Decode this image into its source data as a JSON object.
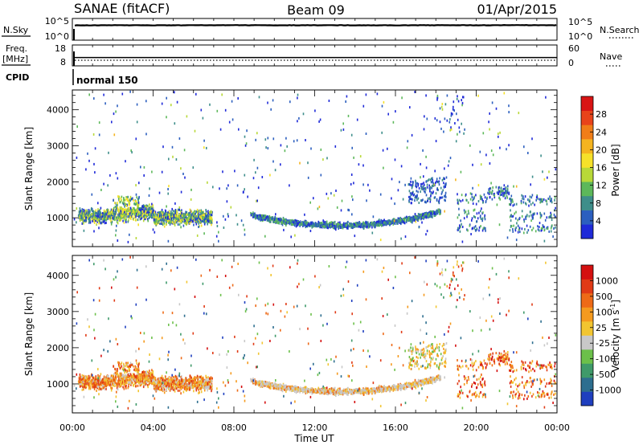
{
  "header": {
    "station": "SANAE (fitACF)",
    "beam": "Beam 09",
    "date": "01/Apr/2015"
  },
  "chart_data": [
    {
      "type": "line",
      "panel": "sky-noise",
      "left_label": "N.Sky",
      "right_label": "N.Search",
      "left_ticks": [
        "10^5",
        "10^0"
      ],
      "right_ticks": [
        "10^5",
        "10^0"
      ],
      "x": [
        0,
        2,
        4,
        6,
        8,
        10,
        12,
        14,
        16,
        18,
        20,
        22,
        24
      ],
      "series": [
        {
          "values": [
            3.4,
            3.45,
            3.42,
            3.44,
            3.46,
            3.43,
            3.45,
            3.44,
            3.42,
            3.45,
            3.44,
            3.46,
            3.45
          ]
        }
      ]
    },
    {
      "type": "line",
      "panel": "frequency",
      "left_label_1": "Freq.",
      "left_label_2": "[MHz]",
      "right_label": "Nave",
      "cpid_label": "CPID",
      "left_ticks": [
        "18",
        "8"
      ],
      "right_ticks": [
        "60",
        "0"
      ],
      "ylim": [
        8,
        18
      ],
      "x": [
        0,
        24
      ],
      "series": [
        {
          "values": [
            12,
            12
          ]
        },
        {
          "values": [
            10.7,
            10.7
          ]
        }
      ]
    },
    {
      "type": "scatter",
      "panel": "cpid",
      "annotation": "normal 150"
    },
    {
      "type": "heatmap",
      "panel": "power",
      "ylabel": "Slant Range [km]",
      "yticks": [
        "4000",
        "3000",
        "2000",
        "1000"
      ],
      "ylim": [
        200,
        4550
      ],
      "xlim": [
        0,
        24
      ],
      "colorbar": {
        "label": "Power [dB]",
        "ticks": [
          "28",
          "24",
          "20",
          "16",
          "12",
          "8",
          "4"
        ],
        "colors": [
          "#1f2ad8",
          "#2c5fbf",
          "#3e8e8a",
          "#5db85a",
          "#b8d838",
          "#f6e12a",
          "#f5b41f",
          "#f07d18",
          "#e8431a",
          "#d81414"
        ]
      }
    },
    {
      "type": "heatmap",
      "panel": "velocity",
      "ylabel": "Slant Range [km]",
      "yticks": [
        "4000",
        "3000",
        "2000",
        "1000"
      ],
      "ylim": [
        200,
        4550
      ],
      "xlim": [
        0,
        24
      ],
      "xlabel": "Time UT",
      "xticks": [
        "00:00",
        "04:00",
        "08:00",
        "12:00",
        "16:00",
        "20:00",
        "00:00"
      ],
      "colorbar": {
        "label": "Velocity [m s",
        "label_sup": "-1",
        "label_end": "]",
        "ticks": [
          "1000",
          "500",
          "100",
          "25",
          "-25",
          "-100",
          "-500",
          "-1000"
        ],
        "colors": [
          "#1f3fbf",
          "#2d6e8f",
          "#3f9a6a",
          "#6cc04a",
          "#c8c8c8",
          "#f2c530",
          "#f59a1e",
          "#ee6a17",
          "#e03a16",
          "#d41010"
        ]
      }
    }
  ]
}
